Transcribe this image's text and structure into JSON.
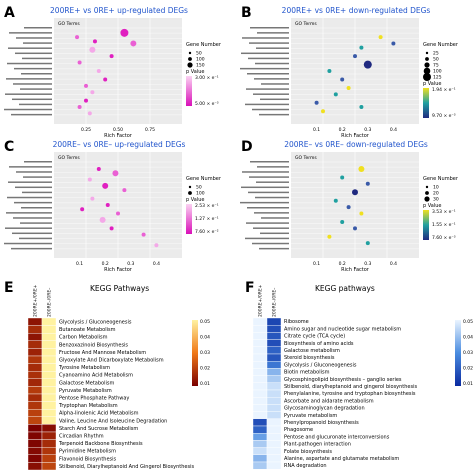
{
  "panels": [
    {
      "letter": "A",
      "title": "200RE+ vs 0RE+ up-regulated DEGs",
      "legend": {
        "size_title": "Gene Number",
        "sizes": [
          "50",
          "100",
          "150"
        ],
        "color_title": "p Value",
        "colors": [
          "3.00 × e⁻¹",
          "5.00 × e⁻³"
        ]
      },
      "x_ticks": [
        "0.25",
        "0.50",
        "0.75"
      ]
    },
    {
      "letter": "B",
      "title": "200RE+ vs 0RE+ down-regulated DEGs",
      "legend": {
        "size_title": "Gene Number",
        "sizes": [
          "25",
          "50",
          "75",
          "100",
          "125"
        ],
        "color_title": "p Value",
        "colors": [
          "1.94 × e⁻¹",
          "9.70 × e⁻³"
        ]
      },
      "x_ticks": [
        "0.1",
        "0.2",
        "0.3",
        "0.4"
      ]
    },
    {
      "letter": "C",
      "title": "200RE– vs 0RE– up-regulated DEGs",
      "legend": {
        "size_title": "Gene Number",
        "sizes": [
          "50",
          "100"
        ],
        "color_title": "p Value",
        "colors": [
          "2.53 × e⁻¹",
          "1.27 × e⁻¹",
          "7.60 × e⁻²"
        ]
      },
      "x_ticks": [
        "0.1",
        "0.2",
        "0.3",
        "0.4"
      ]
    },
    {
      "letter": "D",
      "title": "200RE– vs 0RE– down-regulated DEGs",
      "legend": {
        "size_title": "Gene Number",
        "sizes": [
          "10",
          "20",
          "30"
        ],
        "color_title": "p Value",
        "colors": [
          "3.53 × e⁻¹",
          "1.55 × e⁻¹",
          "7.60 × e⁻³"
        ]
      },
      "x_ticks": [
        "0.1",
        "0.2",
        "0.3",
        "0.4"
      ]
    }
  ],
  "labels": {
    "go_terms": "GO Terms",
    "rich_factor": "Rich Factor"
  },
  "heatmaps": [
    {
      "letter": "E",
      "title": "KEGG Pathways",
      "columns": [
        "200RE+/0RE+",
        "200RE–/0RE–"
      ],
      "scale": [
        "0.05",
        "0.04",
        "0.03",
        "0.02",
        "0.01"
      ],
      "rows": [
        "Glycolysis / Gluconeogenesis",
        "Butanoate Metabolism",
        "Carbon Metabolism",
        "Benzoxazinoid Biosynthesis",
        "Fructose And Mannose Metabolism",
        "Glyoxylate And Dicarboxylate Metabolism",
        "Tyrosine Metabolism",
        "Cyanoamino Acid Metabolism",
        "Galactose Metabolism",
        "Pyruvate Metabolism",
        "Pentose Phosphate Pathway",
        "Tryptophan Metabolism",
        "Alpha-linolenic Acid Metabolism",
        "Valine, Leucine And Isoleucine Degradation",
        "Starch And Sucrose Metabolism",
        "Circadian Rhythm",
        "Terpenoid Backbone Biosynthesis",
        "Pyrimidine Metabolism",
        "Flavonoid Biosynthesis",
        "Stilbenoid, Diarylheptanoid And Gingerol Biosynthesis"
      ]
    },
    {
      "letter": "F",
      "title": "KEGG pathways",
      "columns": [
        "200RE+/0RE+",
        "200RE–/0RE–"
      ],
      "scale": [
        "0.05",
        "0.04",
        "0.03",
        "0.02",
        "0.01"
      ],
      "rows": [
        "Ribosome",
        "Amino sugar and nucleotide sugar metabolism",
        "Citrate cycle (TCA cycle)",
        "Biosynthesis of amino acids",
        "Galactose metabolism",
        "Steroid biosynthesis",
        "Glycolysis / Gluconeogenesis",
        "Biotin metabolism",
        "Glycosphingolipid biosynthesis – ganglio series",
        "Stilbenoid, diarylheptanoid and gingerol biosynthesis",
        "Phenylalanine, tyrosine and tryptophan biosynthesis",
        "Ascorbate and aldarate metabolism",
        "Glycosaminoglycan degradation",
        "Pyruvate metabolism",
        "Phenylpropanoid biosynthesis",
        "Phagosome",
        "Pentose and glucuronate interconversions",
        "Plant-pathogen interaction",
        "Folate biosynthesis",
        "Alanine, aspartate and glutamate metabolism",
        "RNA degradation"
      ]
    }
  ],
  "colors": {
    "title_blue": "#2255cc",
    "magenta": "#e020c0",
    "pink": "#f4a8e8",
    "yellow": "#f0e020",
    "teal": "#20a0a0",
    "navy": "#202a80",
    "heat_dark": "#6b0000",
    "heat_mid": "#e04010",
    "heat_light": "#fff0a0",
    "blue_dark": "#0a2aa0",
    "blue_light": "#d8ecff"
  }
}
